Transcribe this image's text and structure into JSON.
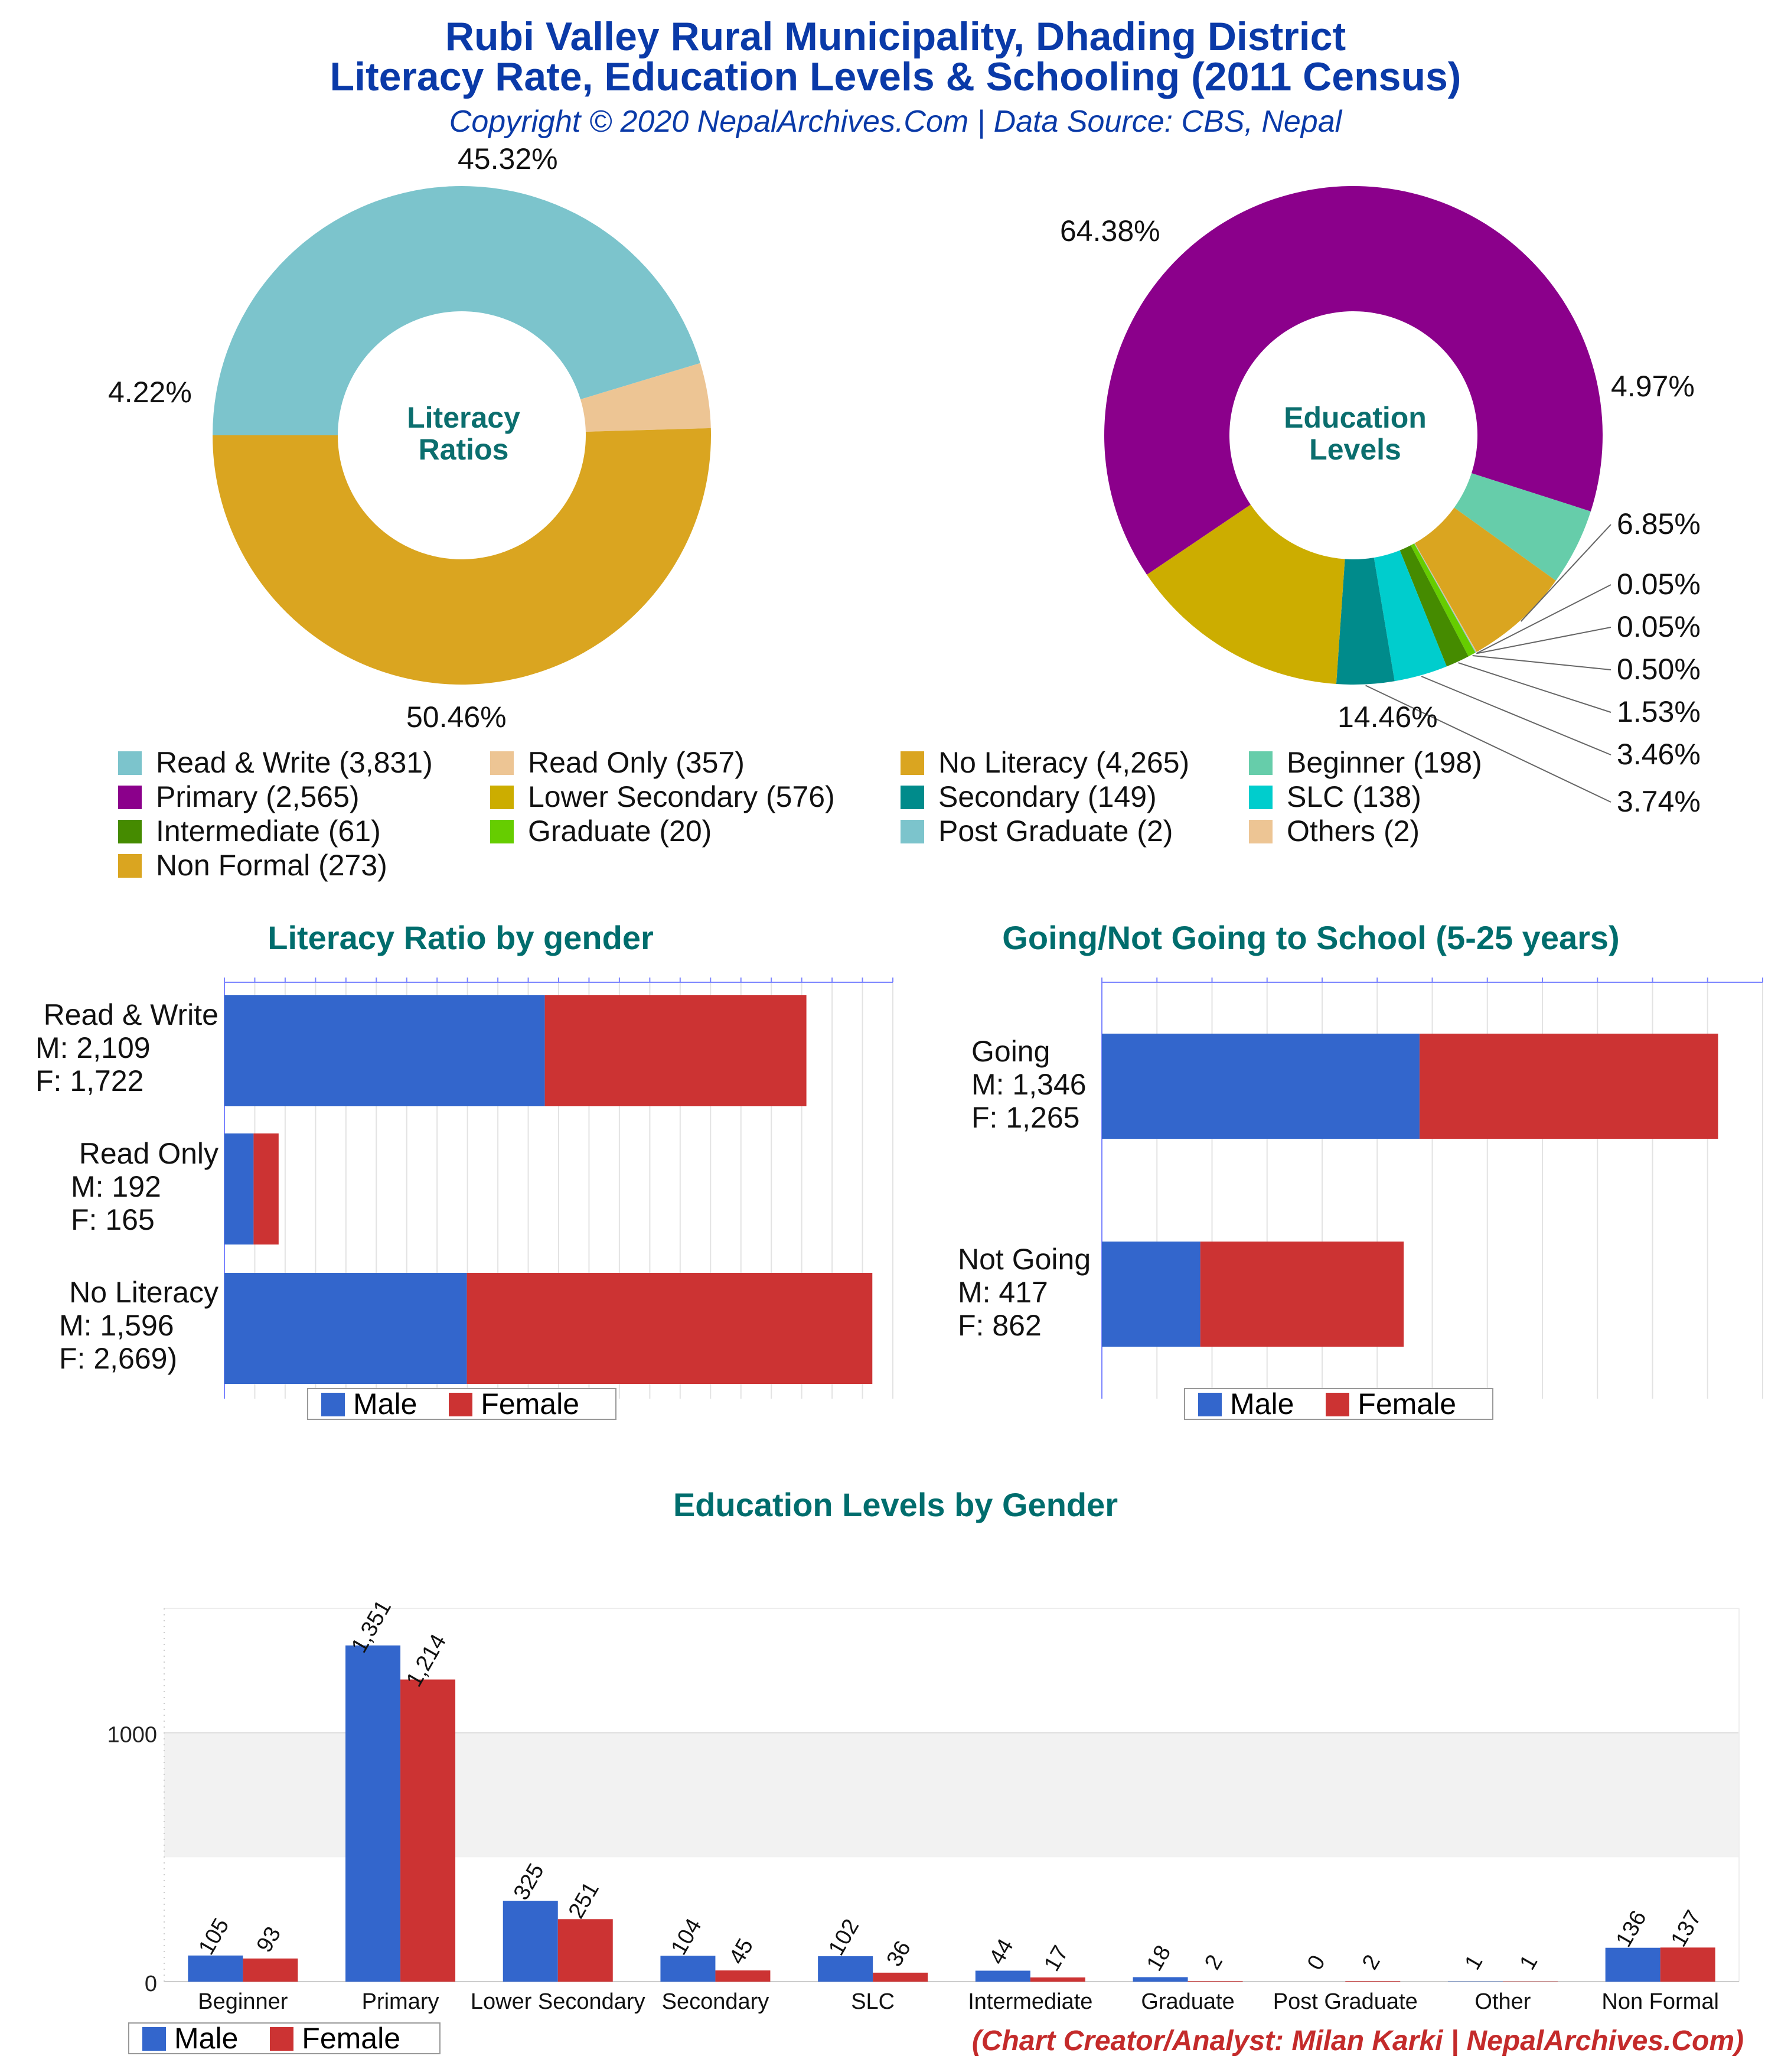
{
  "header": {
    "title_line1": "Rubi Valley Rural Municipality, Dhading District",
    "title_line2": "Literacy Rate, Education Levels & Schooling (2011 Census)",
    "subtitle": "Copyright © 2020 NepalArchives.Com | Data Source: CBS, Nepal"
  },
  "credit": "(Chart Creator/Analyst: Milan Karki | NepalArchives.Com)",
  "legend_male": "Male",
  "legend_female": "Female",
  "colors": {
    "male": "#3366cc",
    "female": "#cc3333",
    "read_write": "#7cc4cc",
    "read_only": "#edc594",
    "no_literacy": "#daa520",
    "beginner": "#66cdaa",
    "primary": "#8b008b",
    "lower_secondary": "#ccad00",
    "secondary": "#008b8b",
    "slc": "#00cdcd",
    "intermediate": "#458b00",
    "graduate": "#66cd00",
    "post_graduate": "#7cc4cc",
    "others": "#edc594",
    "non_formal": "#daa520"
  },
  "main_legend": [
    {
      "label": "Read & Write (3,831)",
      "color": "#7cc4cc"
    },
    {
      "label": "Read Only (357)",
      "color": "#edc594"
    },
    {
      "label": "No Literacy (4,265)",
      "color": "#daa520"
    },
    {
      "label": "Beginner (198)",
      "color": "#66cdaa"
    },
    {
      "label": "Primary (2,565)",
      "color": "#8b008b"
    },
    {
      "label": "Lower Secondary (576)",
      "color": "#ccad00"
    },
    {
      "label": "Secondary (149)",
      "color": "#008b8b"
    },
    {
      "label": "SLC (138)",
      "color": "#00cdcd"
    },
    {
      "label": "Intermediate (61)",
      "color": "#458b00"
    },
    {
      "label": "Graduate (20)",
      "color": "#66cd00"
    },
    {
      "label": "Post Graduate (2)",
      "color": "#7cc4cc"
    },
    {
      "label": "Others (2)",
      "color": "#edc594"
    },
    {
      "label": "Non Formal (273)",
      "color": "#daa520"
    }
  ],
  "chart_data": [
    {
      "type": "pie",
      "title": "Literacy Ratios",
      "center_label_line1": "Literacy",
      "center_label_line2": "Ratios",
      "slices": [
        {
          "name": "Read & Write",
          "value": 3831,
          "percent_label": "45.32%",
          "color": "#7cc4cc"
        },
        {
          "name": "Read Only",
          "value": 357,
          "percent_label": "4.22%",
          "color": "#edc594"
        },
        {
          "name": "No Literacy",
          "value": 4265,
          "percent_label": "50.46%",
          "color": "#daa520"
        }
      ]
    },
    {
      "type": "pie",
      "title": "Education Levels",
      "center_label_line1": "Education",
      "center_label_line2": "Levels",
      "slices": [
        {
          "name": "Primary",
          "value": 2565,
          "percent_label": "64.38%",
          "color": "#8b008b"
        },
        {
          "name": "Beginner",
          "value": 198,
          "percent_label": "4.97%",
          "color": "#66cdaa"
        },
        {
          "name": "Non Formal",
          "value": 273,
          "percent_label": "6.85%",
          "color": "#daa520"
        },
        {
          "name": "Others",
          "value": 2,
          "percent_label": "0.05%",
          "color": "#edc594"
        },
        {
          "name": "Post Graduate",
          "value": 2,
          "percent_label": "0.05%",
          "color": "#7cc4cc"
        },
        {
          "name": "Graduate",
          "value": 20,
          "percent_label": "0.50%",
          "color": "#66cd00"
        },
        {
          "name": "Intermediate",
          "value": 61,
          "percent_label": "1.53%",
          "color": "#458b00"
        },
        {
          "name": "SLC",
          "value": 138,
          "percent_label": "3.46%",
          "color": "#00cdcd"
        },
        {
          "name": "Secondary",
          "value": 149,
          "percent_label": "3.74%",
          "color": "#008b8b"
        },
        {
          "name": "Lower Secondary",
          "value": 576,
          "percent_label": "14.46%",
          "color": "#ccad00"
        }
      ]
    },
    {
      "type": "bar",
      "orientation": "horizontal-stacked",
      "title": "Literacy Ratio by gender",
      "categories": [
        "Read & Write",
        "Read Only",
        "No Literacy"
      ],
      "category_labels": [
        [
          "Read & Write",
          "M: 2,109",
          "F: 1,722"
        ],
        [
          "Read Only",
          "M: 192",
          "F: 165"
        ],
        [
          "No Literacy",
          "M: 1,596",
          "F: 2,669)"
        ]
      ],
      "series": [
        {
          "name": "Male",
          "values": [
            2109,
            192,
            1596
          ]
        },
        {
          "name": "Female",
          "values": [
            1722,
            165,
            2669
          ]
        }
      ],
      "xlim": [
        0,
        4400
      ]
    },
    {
      "type": "bar",
      "orientation": "horizontal-stacked",
      "title": "Going/Not Going to School (5-25 years)",
      "categories": [
        "Going",
        "Not Going"
      ],
      "category_labels": [
        [
          "Going",
          "M: 1,346",
          "F: 1,265"
        ],
        [
          "Not Going",
          "M: 417",
          "F: 862"
        ]
      ],
      "series": [
        {
          "name": "Male",
          "values": [
            1346,
            417
          ]
        },
        {
          "name": "Female",
          "values": [
            1265,
            862
          ]
        }
      ],
      "xlim": [
        0,
        2800
      ]
    },
    {
      "type": "bar",
      "title": "Education Levels by Gender",
      "categories": [
        "Beginner",
        "Primary",
        "Lower Secondary",
        "Secondary",
        "SLC",
        "Intermediate",
        "Graduate",
        "Post Graduate",
        "Other",
        "Non Formal"
      ],
      "series": [
        {
          "name": "Male",
          "values": [
            105,
            1351,
            325,
            104,
            102,
            44,
            18,
            0,
            1,
            136
          ]
        },
        {
          "name": "Female",
          "values": [
            93,
            1214,
            251,
            45,
            36,
            17,
            2,
            2,
            1,
            137
          ]
        }
      ],
      "value_labels": {
        "Male": [
          "105",
          "1,351",
          "325",
          "104",
          "102",
          "44",
          "18",
          "0",
          "1",
          "136"
        ],
        "Female": [
          "93",
          "1,214",
          "251",
          "45",
          "36",
          "17",
          "2",
          "2",
          "1",
          "137"
        ]
      },
      "yticks": [
        "0",
        "1000"
      ],
      "ylim": [
        0,
        1500
      ]
    }
  ]
}
